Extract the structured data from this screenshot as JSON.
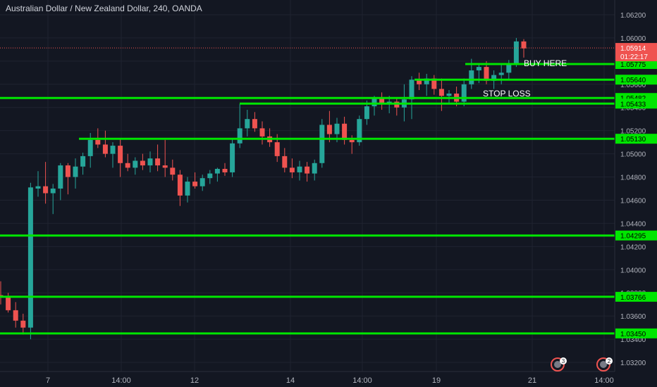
{
  "header": {
    "title": "Australian Dollar / New Zealand Dollar, 240, OANDA"
  },
  "annotations": {
    "buy_here": "BUY HERE",
    "stop_loss": "STOP LOSS"
  },
  "price_badges": {
    "last_price": "1.05914",
    "countdown": "01:22:17"
  },
  "markers": [
    {
      "label": "3",
      "near": "21"
    },
    {
      "label": "2",
      "near": "14:00"
    }
  ],
  "colors": {
    "background": "#131722",
    "up": "#26a69a",
    "down": "#ef5350",
    "level_line": "#00e600",
    "grid": "#1f2330",
    "axis_text": "#b2b5be"
  },
  "chart_data": {
    "type": "candlestick",
    "title": "Australian Dollar / New Zealand Dollar, 240, OANDA",
    "ylim": [
      1.031,
      1.063
    ],
    "y_ticks": [
      "1.06200",
      "1.06000",
      "1.05800",
      "1.05600",
      "1.05400",
      "1.05200",
      "1.05000",
      "1.04800",
      "1.04600",
      "1.04400",
      "1.04200",
      "1.04000",
      "1.03800",
      "1.03600",
      "1.03400",
      "1.03200"
    ],
    "x_ticks": [
      "7",
      "14:00",
      "12",
      "14",
      "14:00",
      "19",
      "21",
      "14:00"
    ],
    "grid": true,
    "levels": [
      {
        "price": "1.05775",
        "value": 1.05775,
        "extent": "partial"
      },
      {
        "price": "1.05640",
        "value": 1.0564,
        "extent": "partial"
      },
      {
        "price": "1.05482",
        "value": 1.05482,
        "extent": "full"
      },
      {
        "price": "1.05433",
        "value": 1.05433,
        "extent": "partial"
      },
      {
        "price": "1.05130",
        "value": 1.0513,
        "extent": "partial"
      },
      {
        "price": "1.04295",
        "value": 1.04295,
        "extent": "full"
      },
      {
        "price": "1.03766",
        "value": 1.03766,
        "extent": "full"
      },
      {
        "price": "1.03450",
        "value": 1.0345,
        "extent": "full"
      }
    ],
    "candles": [
      {
        "o": 1.0378,
        "h": 1.039,
        "l": 1.037,
        "c": 1.0376
      },
      {
        "o": 1.0377,
        "h": 1.038,
        "l": 1.0363,
        "c": 1.0365
      },
      {
        "o": 1.0365,
        "h": 1.0372,
        "l": 1.035,
        "c": 1.0356
      },
      {
        "o": 1.0356,
        "h": 1.0362,
        "l": 1.0344,
        "c": 1.035
      },
      {
        "o": 1.035,
        "h": 1.0475,
        "l": 1.034,
        "c": 1.0471
      },
      {
        "o": 1.047,
        "h": 1.0485,
        "l": 1.0463,
        "c": 1.0472
      },
      {
        "o": 1.0472,
        "h": 1.0493,
        "l": 1.0457,
        "c": 1.0466
      },
      {
        "o": 1.0466,
        "h": 1.0474,
        "l": 1.0448,
        "c": 1.047
      },
      {
        "o": 1.047,
        "h": 1.0492,
        "l": 1.046,
        "c": 1.049
      },
      {
        "o": 1.049,
        "h": 1.0492,
        "l": 1.0465,
        "c": 1.048
      },
      {
        "o": 1.048,
        "h": 1.0496,
        "l": 1.047,
        "c": 1.0489
      },
      {
        "o": 1.0489,
        "h": 1.0501,
        "l": 1.0482,
        "c": 1.0498
      },
      {
        "o": 1.0498,
        "h": 1.0518,
        "l": 1.0488,
        "c": 1.0512
      },
      {
        "o": 1.0512,
        "h": 1.0522,
        "l": 1.0505,
        "c": 1.0508
      },
      {
        "o": 1.0508,
        "h": 1.052,
        "l": 1.0497,
        "c": 1.05
      },
      {
        "o": 1.05,
        "h": 1.051,
        "l": 1.0488,
        "c": 1.0507
      },
      {
        "o": 1.0507,
        "h": 1.0513,
        "l": 1.048,
        "c": 1.0492
      },
      {
        "o": 1.0492,
        "h": 1.05,
        "l": 1.0485,
        "c": 1.0488
      },
      {
        "o": 1.0488,
        "h": 1.0497,
        "l": 1.0482,
        "c": 1.0494
      },
      {
        "o": 1.0494,
        "h": 1.05,
        "l": 1.0486,
        "c": 1.049
      },
      {
        "o": 1.049,
        "h": 1.0502,
        "l": 1.0484,
        "c": 1.0496
      },
      {
        "o": 1.0496,
        "h": 1.0508,
        "l": 1.0485,
        "c": 1.049
      },
      {
        "o": 1.049,
        "h": 1.0512,
        "l": 1.048,
        "c": 1.0488
      },
      {
        "o": 1.0488,
        "h": 1.0495,
        "l": 1.0477,
        "c": 1.0482
      },
      {
        "o": 1.0482,
        "h": 1.0486,
        "l": 1.0455,
        "c": 1.0464
      },
      {
        "o": 1.0464,
        "h": 1.048,
        "l": 1.0458,
        "c": 1.0476
      },
      {
        "o": 1.0476,
        "h": 1.0484,
        "l": 1.047,
        "c": 1.0472
      },
      {
        "o": 1.0472,
        "h": 1.0482,
        "l": 1.0468,
        "c": 1.0479
      },
      {
        "o": 1.0479,
        "h": 1.0486,
        "l": 1.0474,
        "c": 1.0483
      },
      {
        "o": 1.0483,
        "h": 1.0488,
        "l": 1.0476,
        "c": 1.0487
      },
      {
        "o": 1.0487,
        "h": 1.0492,
        "l": 1.0481,
        "c": 1.0484
      },
      {
        "o": 1.0484,
        "h": 1.0513,
        "l": 1.048,
        "c": 1.0509
      },
      {
        "o": 1.0509,
        "h": 1.0543,
        "l": 1.0505,
        "c": 1.0522
      },
      {
        "o": 1.0522,
        "h": 1.0538,
        "l": 1.0515,
        "c": 1.053
      },
      {
        "o": 1.053,
        "h": 1.0536,
        "l": 1.0519,
        "c": 1.0522
      },
      {
        "o": 1.0522,
        "h": 1.0528,
        "l": 1.0508,
        "c": 1.0515
      },
      {
        "o": 1.0515,
        "h": 1.0522,
        "l": 1.0506,
        "c": 1.051
      },
      {
        "o": 1.051,
        "h": 1.0517,
        "l": 1.0493,
        "c": 1.0498
      },
      {
        "o": 1.0498,
        "h": 1.0505,
        "l": 1.0484,
        "c": 1.0488
      },
      {
        "o": 1.0488,
        "h": 1.0496,
        "l": 1.0479,
        "c": 1.0484
      },
      {
        "o": 1.0484,
        "h": 1.0494,
        "l": 1.0477,
        "c": 1.0489
      },
      {
        "o": 1.0489,
        "h": 1.0493,
        "l": 1.0476,
        "c": 1.0483
      },
      {
        "o": 1.0483,
        "h": 1.0495,
        "l": 1.0477,
        "c": 1.0492
      },
      {
        "o": 1.0492,
        "h": 1.053,
        "l": 1.0488,
        "c": 1.0525
      },
      {
        "o": 1.0525,
        "h": 1.0537,
        "l": 1.051,
        "c": 1.0517
      },
      {
        "o": 1.0517,
        "h": 1.0531,
        "l": 1.051,
        "c": 1.0526
      },
      {
        "o": 1.0526,
        "h": 1.0532,
        "l": 1.0508,
        "c": 1.0512
      },
      {
        "o": 1.0512,
        "h": 1.0516,
        "l": 1.05,
        "c": 1.051
      },
      {
        "o": 1.051,
        "h": 1.0533,
        "l": 1.0507,
        "c": 1.053
      },
      {
        "o": 1.053,
        "h": 1.0546,
        "l": 1.0525,
        "c": 1.0541
      },
      {
        "o": 1.0541,
        "h": 1.055,
        "l": 1.0533,
        "c": 1.0548
      },
      {
        "o": 1.0548,
        "h": 1.0553,
        "l": 1.0538,
        "c": 1.0543
      },
      {
        "o": 1.0543,
        "h": 1.055,
        "l": 1.0535,
        "c": 1.0545
      },
      {
        "o": 1.0545,
        "h": 1.0548,
        "l": 1.0533,
        "c": 1.054
      },
      {
        "o": 1.054,
        "h": 1.056,
        "l": 1.0528,
        "c": 1.0547
      },
      {
        "o": 1.0547,
        "h": 1.0567,
        "l": 1.053,
        "c": 1.0564
      },
      {
        "o": 1.0564,
        "h": 1.057,
        "l": 1.0555,
        "c": 1.056
      },
      {
        "o": 1.056,
        "h": 1.0569,
        "l": 1.055,
        "c": 1.0565
      },
      {
        "o": 1.0565,
        "h": 1.0568,
        "l": 1.0551,
        "c": 1.0556
      },
      {
        "o": 1.0556,
        "h": 1.0565,
        "l": 1.0537,
        "c": 1.055
      },
      {
        "o": 1.055,
        "h": 1.0555,
        "l": 1.0543,
        "c": 1.0552
      },
      {
        "o": 1.0552,
        "h": 1.0558,
        "l": 1.0541,
        "c": 1.0545
      },
      {
        "o": 1.0545,
        "h": 1.0565,
        "l": 1.0541,
        "c": 1.056
      },
      {
        "o": 1.056,
        "h": 1.0582,
        "l": 1.0556,
        "c": 1.0572
      },
      {
        "o": 1.0572,
        "h": 1.0578,
        "l": 1.0561,
        "c": 1.0575
      },
      {
        "o": 1.0575,
        "h": 1.058,
        "l": 1.056,
        "c": 1.0563
      },
      {
        "o": 1.0563,
        "h": 1.0572,
        "l": 1.0556,
        "c": 1.0568
      },
      {
        "o": 1.0568,
        "h": 1.0577,
        "l": 1.056,
        "c": 1.057
      },
      {
        "o": 1.057,
        "h": 1.0581,
        "l": 1.0564,
        "c": 1.0577
      },
      {
        "o": 1.0577,
        "h": 1.06,
        "l": 1.0575,
        "c": 1.0597
      },
      {
        "o": 1.0597,
        "h": 1.0599,
        "l": 1.0583,
        "c": 1.0591
      }
    ]
  }
}
